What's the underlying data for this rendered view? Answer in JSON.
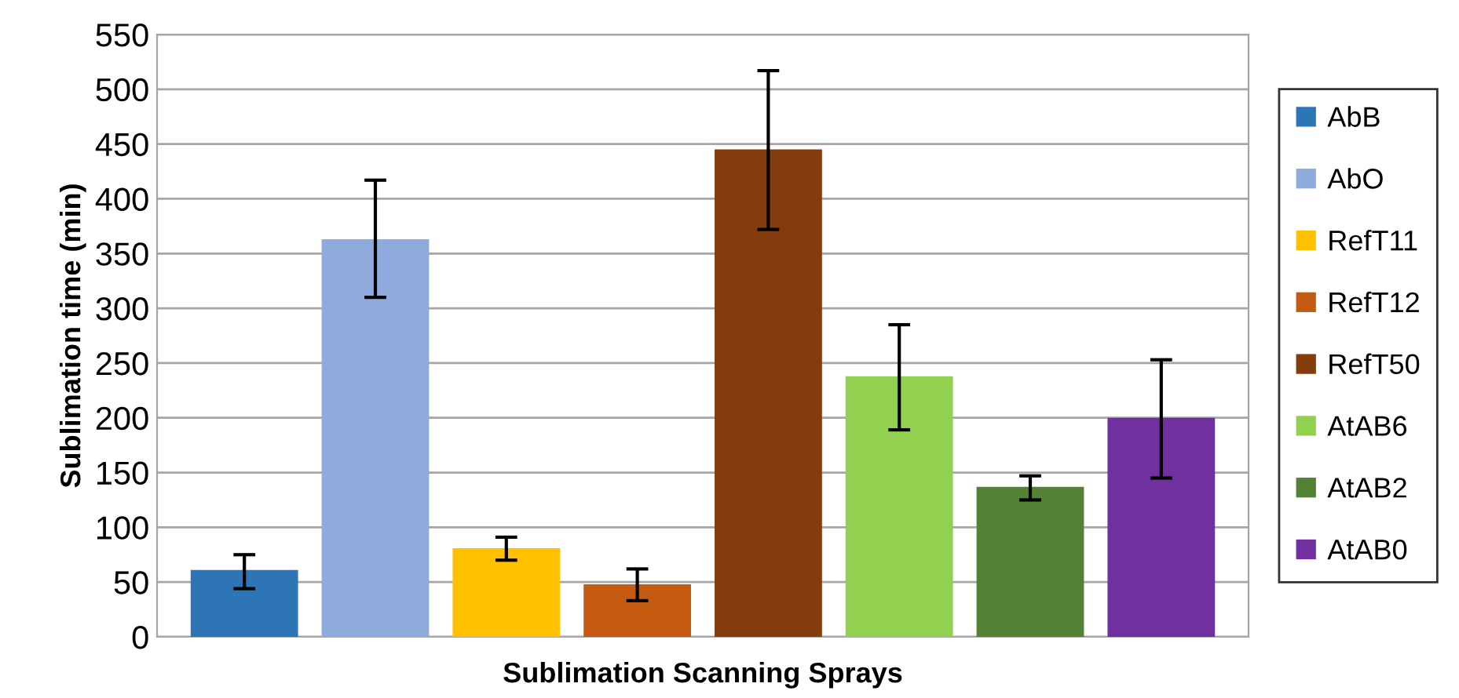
{
  "chart_data": {
    "type": "bar",
    "xlabel": "Sublimation Scanning Sprays",
    "ylabel": "Sublimation time (min)",
    "categories": [
      null
    ],
    "series": [
      {
        "name": "AbB",
        "color": "#2e75b6",
        "values": [
          61
        ],
        "errors": [
          [
            44,
            75
          ]
        ]
      },
      {
        "name": "AbO",
        "color": "#8faadc",
        "values": [
          363
        ],
        "errors": [
          [
            310,
            417
          ]
        ]
      },
      {
        "name": "RefT11",
        "color": "#ffc000",
        "values": [
          81
        ],
        "errors": [
          [
            70,
            91
          ]
        ]
      },
      {
        "name": "RefT12",
        "color": "#c55a11",
        "values": [
          48
        ],
        "errors": [
          [
            33,
            62
          ]
        ]
      },
      {
        "name": "RefT50",
        "color": "#843c0c",
        "values": [
          445
        ],
        "errors": [
          [
            372,
            517
          ]
        ]
      },
      {
        "name": "AtAB6",
        "color": "#92d050",
        "values": [
          238
        ],
        "errors": [
          [
            189,
            285
          ]
        ]
      },
      {
        "name": "AtAB2",
        "color": "#548235",
        "values": [
          137
        ],
        "errors": [
          [
            125,
            147
          ]
        ]
      },
      {
        "name": "AtAB0",
        "color": "#7030a0",
        "values": [
          200
        ],
        "errors": [
          [
            145,
            253
          ]
        ]
      }
    ],
    "ylim": [
      0,
      550
    ],
    "yticks": [
      0,
      50,
      100,
      150,
      200,
      250,
      300,
      350,
      400,
      450,
      500,
      550
    ],
    "grid": "y",
    "legend": "right"
  }
}
